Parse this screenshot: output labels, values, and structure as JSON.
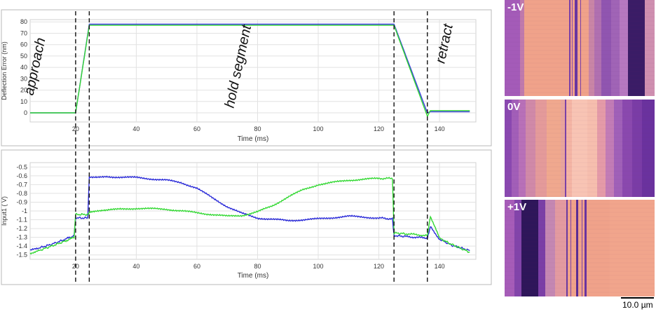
{
  "chart_data": [
    {
      "type": "line",
      "title": "",
      "xlabel": "Time (ms)",
      "ylabel": "Deflection Error (nm)",
      "xlim": [
        5,
        152
      ],
      "ylim": [
        -8,
        82
      ],
      "xticks": [
        20,
        40,
        60,
        80,
        100,
        120,
        140
      ],
      "yticks": [
        0,
        10,
        20,
        30,
        40,
        50,
        60,
        70,
        80
      ],
      "grid": true,
      "series": [
        {
          "color": "#3a3ae0",
          "x": [
            5,
            20,
            24.5,
            125,
            136,
            137,
            150
          ],
          "y": [
            0,
            0,
            78,
            78,
            0,
            1,
            1
          ]
        },
        {
          "color": "#33d833",
          "x": [
            5,
            20,
            24.5,
            125,
            136,
            137,
            150
          ],
          "y": [
            0,
            0,
            77,
            77,
            -3,
            2,
            2
          ]
        }
      ],
      "segment_markers": [
        20,
        24.5,
        125,
        136
      ],
      "annotations": [
        {
          "text": "approach",
          "x": 8,
          "y": 40
        },
        {
          "text": "hold segment",
          "x": 75,
          "y": 40
        },
        {
          "text": "retract",
          "x": 143,
          "y": 60
        }
      ]
    },
    {
      "type": "line",
      "title": "",
      "xlabel": "Time (ms)",
      "ylabel": "Input1 ( V)",
      "xlim": [
        5,
        152
      ],
      "ylim": [
        -1.55,
        -0.45
      ],
      "xticks": [
        20,
        40,
        60,
        80,
        100,
        120,
        140
      ],
      "yticks": [
        -1.5,
        -1.4,
        -1.3,
        -1.2,
        -1.1,
        -1.0,
        -0.9,
        -0.8,
        -0.7,
        -0.6,
        -0.5
      ],
      "grid": true,
      "series": [
        {
          "color": "#2a2ad8",
          "x": [
            5,
            8,
            12,
            16,
            19.5,
            20,
            24,
            24.5,
            30,
            40,
            50,
            55,
            60,
            65,
            70,
            75,
            80,
            90,
            100,
            110,
            120,
            124.5,
            125,
            129,
            136,
            137,
            140,
            144,
            148,
            150
          ],
          "y": [
            -1.45,
            -1.42,
            -1.38,
            -1.33,
            -1.28,
            -1.08,
            -1.08,
            -0.61,
            -0.61,
            -0.62,
            -0.65,
            -0.68,
            -0.74,
            -0.85,
            -0.95,
            -1.03,
            -1.08,
            -1.11,
            -1.09,
            -1.06,
            -1.08,
            -1.09,
            -1.28,
            -1.29,
            -1.31,
            -1.18,
            -1.32,
            -1.39,
            -1.43,
            -1.45
          ]
        },
        {
          "color": "#33d833",
          "x": [
            5,
            8,
            12,
            16,
            19.5,
            20,
            24,
            24.5,
            30,
            40,
            50,
            60,
            65,
            70,
            75,
            80,
            85,
            90,
            95,
            100,
            110,
            120,
            124.5,
            125,
            129,
            136,
            137,
            140,
            144,
            148,
            150
          ],
          "y": [
            -1.48,
            -1.45,
            -1.4,
            -1.35,
            -1.3,
            -1.04,
            -1.04,
            -1.02,
            -0.99,
            -0.97,
            -0.98,
            -1.02,
            -1.04,
            -1.06,
            -1.05,
            -1.01,
            -0.94,
            -0.84,
            -0.76,
            -0.7,
            -0.65,
            -0.63,
            -0.63,
            -1.25,
            -1.26,
            -1.28,
            -1.06,
            -1.31,
            -1.38,
            -1.44,
            -1.47
          ]
        }
      ],
      "segment_markers": [
        20,
        24.5,
        125,
        136
      ]
    }
  ],
  "images": {
    "tiles": [
      {
        "label": "-1V"
      },
      {
        "label": "0V"
      },
      {
        "label": "+1V"
      }
    ],
    "scale_label": "10.0 µm"
  }
}
